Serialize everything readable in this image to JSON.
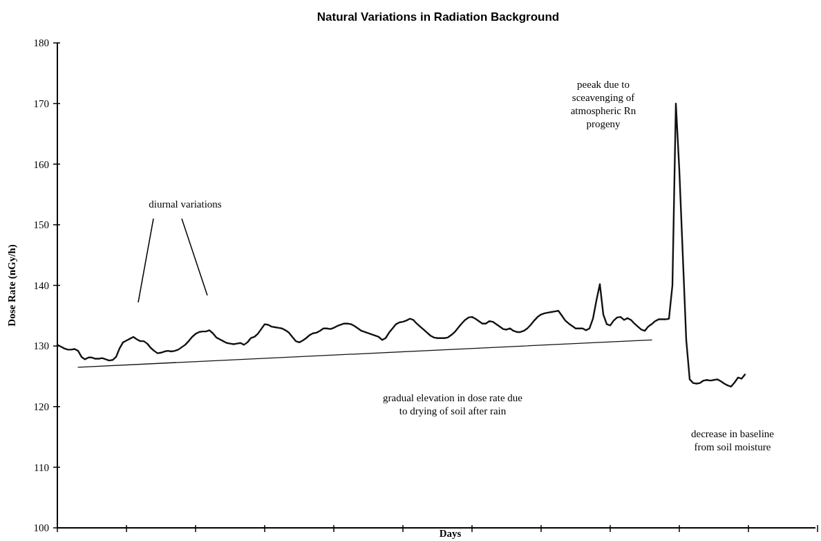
{
  "chart_data": {
    "type": "line",
    "title": "Natural Variations in Radiation Background",
    "xlabel": "Days",
    "ylabel": "Dose Rate (nGy/h)",
    "categories": [
      null,
      null,
      null,
      null,
      null,
      null,
      null,
      null,
      null,
      null,
      null,
      null,
      null,
      null,
      null,
      null,
      null,
      null,
      null,
      null,
      null,
      null,
      null,
      null,
      null,
      null,
      null,
      null,
      null,
      null,
      null,
      null,
      null,
      null,
      null,
      null,
      null,
      null,
      null,
      null,
      null,
      null,
      null,
      null,
      null,
      null,
      null,
      null,
      null,
      null,
      null,
      null,
      null,
      null,
      null,
      null,
      null,
      null,
      null,
      null,
      null,
      null,
      null,
      null,
      null,
      null,
      null,
      null,
      null,
      null,
      null,
      null,
      null,
      null,
      null,
      null,
      null,
      null,
      null,
      null,
      null,
      null,
      null,
      null,
      null,
      null,
      null,
      null,
      null,
      null,
      null,
      null,
      null,
      null,
      null,
      null,
      null,
      null,
      null,
      null,
      null,
      null,
      null,
      null,
      null,
      null,
      null,
      null,
      null,
      null,
      null,
      null,
      null,
      null,
      null,
      null,
      null,
      null,
      null,
      null,
      null,
      null,
      null,
      null,
      null,
      null,
      null,
      null,
      null,
      null,
      null,
      null,
      null,
      null,
      null,
      null,
      null,
      null,
      null,
      null,
      null,
      null,
      null,
      null,
      null,
      null,
      null,
      null,
      null,
      null,
      null,
      null,
      null,
      null,
      null,
      null,
      null,
      null,
      null,
      null,
      null,
      null,
      null,
      null,
      null,
      null,
      null,
      null,
      null,
      null,
      null,
      null,
      null,
      null,
      null,
      null,
      null,
      null,
      null,
      null,
      null,
      null,
      null,
      null,
      null,
      null,
      null,
      null,
      null,
      null,
      null,
      null,
      null,
      null,
      null,
      null,
      null,
      null,
      null,
      null
    ],
    "ylim": [
      100,
      180
    ],
    "yticks": [
      100,
      110,
      120,
      130,
      140,
      150,
      160,
      170,
      180
    ],
    "grid": false,
    "marker": "none",
    "series": [
      {
        "color": "#111111",
        "line_style": "solid",
        "values": [
          130.2,
          129.9,
          129.6,
          129.4,
          129.4,
          129.5,
          129.2,
          128.2,
          127.8,
          128.1,
          128.1,
          127.9,
          127.9,
          128.0,
          127.8,
          127.6,
          127.7,
          128.2,
          129.6,
          130.6,
          130.9,
          131.2,
          131.5,
          131.1,
          130.8,
          130.8,
          130.4,
          129.7,
          129.2,
          128.8,
          128.9,
          129.1,
          129.2,
          129.1,
          129.2,
          129.4,
          129.8,
          130.2,
          130.8,
          131.5,
          132.0,
          132.3,
          132.4,
          132.4,
          132.6,
          132.1,
          131.4,
          131.1,
          130.8,
          130.5,
          130.4,
          130.3,
          130.4,
          130.5,
          130.2,
          130.6,
          131.3,
          131.5,
          132.0,
          132.8,
          133.6,
          133.5,
          133.2,
          133.1,
          133.0,
          132.9,
          132.6,
          132.2,
          131.5,
          130.8,
          130.6,
          130.9,
          131.3,
          131.8,
          132.1,
          132.2,
          132.5,
          132.9,
          132.9,
          132.8,
          133.0,
          133.3,
          133.5,
          133.7,
          133.7,
          133.6,
          133.3,
          132.9,
          132.5,
          132.3,
          132.1,
          131.9,
          131.7,
          131.5,
          131.0,
          131.3,
          132.2,
          132.9,
          133.6,
          133.9,
          134.0,
          134.2,
          134.5,
          134.3,
          133.7,
          133.2,
          132.7,
          132.2,
          131.7,
          131.4,
          131.3,
          131.3,
          131.3,
          131.4,
          131.8,
          132.3,
          133.0,
          133.7,
          134.3,
          134.7,
          134.8,
          134.5,
          134.1,
          133.7,
          133.7,
          134.1,
          134.0,
          133.6,
          133.2,
          132.8,
          132.7,
          132.9,
          132.5,
          132.3,
          132.3,
          132.5,
          132.9,
          133.5,
          134.2,
          134.8,
          135.2,
          135.4,
          135.5,
          135.6,
          135.7,
          135.8,
          135.0,
          134.2,
          133.7,
          133.3,
          132.9,
          132.9,
          132.9,
          132.6,
          132.9,
          134.5,
          137.5,
          140.2,
          135.2,
          133.6,
          133.4,
          134.2,
          134.7,
          134.8,
          134.3,
          134.6,
          134.3,
          133.7,
          133.2,
          132.7,
          132.5,
          133.2,
          133.6,
          134.1,
          134.4,
          134.4,
          134.4,
          134.5,
          140.0,
          170.0,
          159.0,
          145.0,
          131.0,
          124.5,
          123.9,
          123.8,
          123.9,
          124.3,
          124.4,
          124.3,
          124.4,
          124.5,
          124.2,
          123.8,
          123.5,
          123.3,
          124.0,
          124.8,
          124.6,
          125.3
        ]
      },
      {
        "type": "line",
        "color": "#111111",
        "line_style": "solid",
        "values": [
          null,
          null,
          null,
          null,
          null,
          null,
          126.5,
          null,
          null,
          null,
          null,
          null,
          null,
          null,
          null,
          null,
          null,
          null,
          null,
          null,
          null,
          null,
          null,
          null,
          null,
          null,
          null,
          null,
          null,
          null,
          null,
          null,
          null,
          null,
          null,
          null,
          null,
          null,
          null,
          null,
          null,
          null,
          null,
          null,
          null,
          null,
          null,
          null,
          null,
          null,
          null,
          null,
          null,
          null,
          null,
          null,
          null,
          null,
          null,
          null,
          null,
          null,
          null,
          null,
          null,
          null,
          null,
          null,
          null,
          null,
          null,
          null,
          null,
          null,
          null,
          null,
          null,
          null,
          null,
          null,
          null,
          null,
          null,
          null,
          null,
          null,
          null,
          null,
          null,
          null,
          null,
          null,
          null,
          null,
          null,
          null,
          null,
          null,
          null,
          null,
          null,
          null,
          null,
          null,
          null,
          null,
          null,
          null,
          null,
          null,
          null,
          null,
          null,
          null,
          null,
          null,
          null,
          null,
          null,
          null,
          null,
          null,
          null,
          null,
          null,
          null,
          null,
          null,
          null,
          null,
          null,
          null,
          null,
          null,
          null,
          null,
          null,
          null,
          null,
          null,
          null,
          null,
          null,
          null,
          null,
          null,
          null,
          null,
          null,
          null,
          null,
          null,
          null,
          null,
          null,
          null,
          null,
          null,
          null,
          null,
          null,
          null,
          null,
          null,
          null,
          null,
          null,
          null,
          null,
          null,
          null,
          null,
          131.0,
          null,
          null,
          null,
          null,
          null,
          null,
          null,
          null,
          null,
          null,
          null,
          null,
          null,
          null,
          null,
          null,
          null,
          null,
          null,
          null,
          null,
          null,
          null,
          null,
          null,
          null,
          null
        ]
      }
    ],
    "annotations": [
      "diurnal variations",
      "peeak due to sceavenging of atmospheric Rn progeny",
      "gradual elevation in dose rate due to  drying of soil after rain",
      "decrease in baseline from soil moisture"
    ]
  }
}
